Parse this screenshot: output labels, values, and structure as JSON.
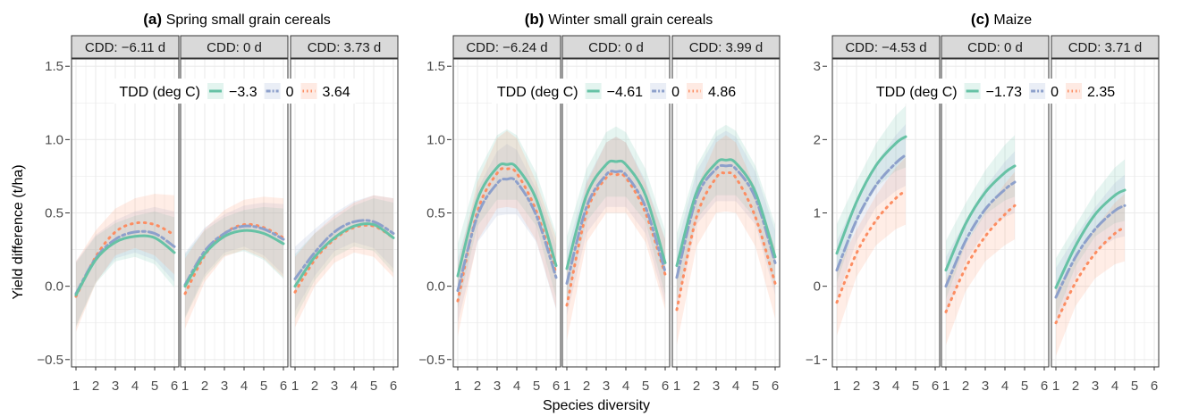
{
  "figure": {
    "xlabel": "Species diversity",
    "ylabel": "Yield difference (t/ha)"
  },
  "legend": {
    "title": "TDD (deg C)"
  },
  "colors": {
    "low": "#66C2A5",
    "mid": "#8DA0CB",
    "high": "#FC8D62",
    "strip_fill": "#d9d9d9",
    "grid": "#ebebeb"
  },
  "chart_data": [
    {
      "type": "line",
      "title_letter": "(a)",
      "title": "Spring small grain cereals",
      "xlabel": "Species diversity",
      "ylabel": "Yield difference (t/ha)",
      "xlim": [
        1,
        6
      ],
      "ylim": [
        -0.55,
        1.55
      ],
      "x_ticks": [
        "1",
        "2",
        "3",
        "4",
        "5",
        "6"
      ],
      "y_ticks": [
        {
          "v": -0.5,
          "label": "−0.5"
        },
        {
          "v": 0.0,
          "label": "0.0"
        },
        {
          "v": 0.5,
          "label": "0.5"
        },
        {
          "v": 1.0,
          "label": "1.0"
        },
        {
          "v": 1.5,
          "label": "1.5"
        }
      ],
      "legend_labels": [
        "−3.3",
        "0",
        "3.64"
      ],
      "grid": true,
      "facets": [
        {
          "label": "CDD: −6.11 d",
          "x": [
            1,
            2,
            3,
            4,
            5,
            6
          ],
          "series": [
            {
              "name": "−3.3",
              "values": [
                -0.06,
                0.18,
                0.3,
                0.34,
                0.33,
                0.23
              ],
              "ci": [
                0.22,
                0.16,
                0.13,
                0.14,
                0.18,
                0.24
              ]
            },
            {
              "name": "0",
              "values": [
                -0.05,
                0.19,
                0.32,
                0.37,
                0.36,
                0.27
              ],
              "ci": [
                0.22,
                0.16,
                0.13,
                0.14,
                0.18,
                0.24
              ]
            },
            {
              "name": "3.64",
              "values": [
                -0.07,
                0.2,
                0.37,
                0.43,
                0.42,
                0.35
              ],
              "ci": [
                0.24,
                0.18,
                0.16,
                0.17,
                0.21,
                0.27
              ]
            }
          ]
        },
        {
          "label": "CDD: 0 d",
          "x": [
            1,
            2,
            3,
            4,
            5,
            6
          ],
          "series": [
            {
              "name": "−3.3",
              "values": [
                0.0,
                0.22,
                0.34,
                0.38,
                0.36,
                0.29
              ],
              "ci": [
                0.22,
                0.16,
                0.13,
                0.14,
                0.18,
                0.24
              ]
            },
            {
              "name": "0",
              "values": [
                0.01,
                0.24,
                0.36,
                0.41,
                0.39,
                0.32
              ],
              "ci": [
                0.22,
                0.16,
                0.13,
                0.14,
                0.18,
                0.24
              ]
            },
            {
              "name": "3.64",
              "values": [
                -0.05,
                0.21,
                0.36,
                0.42,
                0.4,
                0.33
              ],
              "ci": [
                0.24,
                0.18,
                0.16,
                0.17,
                0.21,
                0.27
              ]
            }
          ]
        },
        {
          "label": "CDD: 3.73 d",
          "x": [
            1,
            2,
            3,
            4,
            5,
            6
          ],
          "series": [
            {
              "name": "−3.3",
              "values": [
                0.0,
                0.2,
                0.33,
                0.41,
                0.42,
                0.33
              ],
              "ci": [
                0.22,
                0.16,
                0.13,
                0.14,
                0.18,
                0.24
              ]
            },
            {
              "name": "0",
              "values": [
                0.05,
                0.23,
                0.37,
                0.44,
                0.44,
                0.36
              ],
              "ci": [
                0.22,
                0.16,
                0.13,
                0.14,
                0.18,
                0.24
              ]
            },
            {
              "name": "3.64",
              "values": [
                -0.04,
                0.18,
                0.32,
                0.4,
                0.41,
                0.33
              ],
              "ci": [
                0.24,
                0.18,
                0.16,
                0.17,
                0.21,
                0.27
              ]
            }
          ]
        }
      ]
    },
    {
      "type": "line",
      "title_letter": "(b)",
      "title": "Winter small grain cereals",
      "xlabel": "Species diversity",
      "ylabel": "Yield difference (t/ha)",
      "xlim": [
        1,
        6
      ],
      "ylim": [
        -0.55,
        1.55
      ],
      "x_ticks": [
        "1",
        "2",
        "3",
        "4",
        "5",
        "6"
      ],
      "y_ticks": [
        {
          "v": -0.5,
          "label": "−0.5"
        },
        {
          "v": 0.0,
          "label": "0.0"
        },
        {
          "v": 0.5,
          "label": "0.5"
        },
        {
          "v": 1.0,
          "label": "1.0"
        },
        {
          "v": 1.5,
          "label": "1.5"
        }
      ],
      "legend_labels": [
        "−4.61",
        "0",
        "4.86"
      ],
      "grid": true,
      "facets": [
        {
          "label": "CDD: −6.24 d",
          "x": [
            1,
            2,
            3,
            3.5,
            4,
            5,
            6
          ],
          "series": [
            {
              "name": "−4.61",
              "values": [
                0.07,
                0.59,
                0.81,
                0.83,
                0.81,
                0.59,
                0.14
              ],
              "ci": [
                0.22,
                0.18,
                0.22,
                0.24,
                0.22,
                0.18,
                0.22
              ]
            },
            {
              "name": "0",
              "values": [
                -0.03,
                0.48,
                0.7,
                0.73,
                0.71,
                0.48,
                0.06
              ],
              "ci": [
                0.22,
                0.18,
                0.22,
                0.24,
                0.22,
                0.18,
                0.22
              ]
            },
            {
              "name": "4.86",
              "values": [
                -0.1,
                0.51,
                0.77,
                0.8,
                0.77,
                0.51,
                0.09
              ],
              "ci": [
                0.24,
                0.2,
                0.24,
                0.26,
                0.24,
                0.2,
                0.24
              ]
            }
          ]
        },
        {
          "label": "CDD: 0 d",
          "x": [
            1,
            2,
            3,
            3.5,
            4,
            5,
            6
          ],
          "series": [
            {
              "name": "−4.61",
              "values": [
                0.12,
                0.62,
                0.83,
                0.85,
                0.83,
                0.62,
                0.16
              ],
              "ci": [
                0.22,
                0.18,
                0.22,
                0.24,
                0.22,
                0.18,
                0.22
              ]
            },
            {
              "name": "0",
              "values": [
                0.02,
                0.54,
                0.76,
                0.78,
                0.76,
                0.54,
                0.1
              ],
              "ci": [
                0.22,
                0.18,
                0.22,
                0.24,
                0.22,
                0.18,
                0.22
              ]
            },
            {
              "name": "4.86",
              "values": [
                -0.13,
                0.5,
                0.74,
                0.76,
                0.74,
                0.5,
                0.08
              ],
              "ci": [
                0.24,
                0.2,
                0.24,
                0.26,
                0.24,
                0.2,
                0.24
              ]
            }
          ]
        },
        {
          "label": "CDD: 3.99 d",
          "x": [
            1,
            2,
            3,
            3.5,
            4,
            5,
            6
          ],
          "series": [
            {
              "name": "−4.61",
              "values": [
                0.14,
                0.64,
                0.84,
                0.86,
                0.84,
                0.64,
                0.2
              ],
              "ci": [
                0.22,
                0.18,
                0.22,
                0.24,
                0.22,
                0.18,
                0.22
              ]
            },
            {
              "name": "0",
              "values": [
                0.06,
                0.6,
                0.8,
                0.82,
                0.8,
                0.6,
                0.16
              ],
              "ci": [
                0.22,
                0.18,
                0.22,
                0.24,
                0.22,
                0.18,
                0.22
              ]
            },
            {
              "name": "4.86",
              "values": [
                -0.16,
                0.47,
                0.74,
                0.77,
                0.74,
                0.47,
                0.02
              ],
              "ci": [
                0.24,
                0.2,
                0.24,
                0.26,
                0.24,
                0.2,
                0.24
              ]
            }
          ]
        }
      ]
    },
    {
      "type": "line",
      "title_letter": "(c)",
      "title": "Maize",
      "xlabel": "Species diversity",
      "ylabel": "Yield difference (t/ha)",
      "xlim": [
        1,
        6
      ],
      "ylim": [
        -1.1,
        3.1
      ],
      "x_ticks": [
        "1",
        "2",
        "3",
        "4",
        "5",
        "6"
      ],
      "y_ticks": [
        {
          "v": -1,
          "label": "−1"
        },
        {
          "v": 0,
          "label": "0"
        },
        {
          "v": 1,
          "label": "1"
        },
        {
          "v": 2,
          "label": "2"
        },
        {
          "v": 3,
          "label": "3"
        }
      ],
      "legend_labels": [
        "−1.73",
        "0",
        "2.35"
      ],
      "grid": true,
      "facets": [
        {
          "label": "CDD: −4.53 d",
          "x": [
            1,
            2,
            3,
            4,
            4.5
          ],
          "series": [
            {
              "name": "−1.73",
              "values": [
                0.45,
                1.15,
                1.65,
                1.95,
                2.04
              ],
              "ci": [
                0.4,
                0.28,
                0.3,
                0.38,
                0.42
              ]
            },
            {
              "name": "0",
              "values": [
                0.22,
                0.9,
                1.38,
                1.68,
                1.79
              ],
              "ci": [
                0.4,
                0.28,
                0.3,
                0.38,
                0.42
              ]
            },
            {
              "name": "2.35",
              "values": [
                -0.22,
                0.45,
                0.9,
                1.2,
                1.3
              ],
              "ci": [
                0.45,
                0.32,
                0.34,
                0.42,
                0.46
              ]
            }
          ]
        },
        {
          "label": "CDD: 0 d",
          "x": [
            1,
            2,
            3,
            4,
            4.5
          ],
          "series": [
            {
              "name": "−1.73",
              "values": [
                0.22,
                0.85,
                1.28,
                1.55,
                1.64
              ],
              "ci": [
                0.4,
                0.28,
                0.3,
                0.38,
                0.42
              ]
            },
            {
              "name": "0",
              "values": [
                0.0,
                0.62,
                1.05,
                1.32,
                1.42
              ],
              "ci": [
                0.4,
                0.28,
                0.3,
                0.38,
                0.42
              ]
            },
            {
              "name": "2.35",
              "values": [
                -0.35,
                0.25,
                0.68,
                0.98,
                1.1
              ],
              "ci": [
                0.45,
                0.32,
                0.34,
                0.42,
                0.46
              ]
            }
          ]
        },
        {
          "label": "CDD: 3.71 d",
          "x": [
            1,
            2,
            3,
            4,
            4.5
          ],
          "series": [
            {
              "name": "−1.73",
              "values": [
                -0.02,
                0.55,
                0.98,
                1.24,
                1.31
              ],
              "ci": [
                0.4,
                0.28,
                0.3,
                0.38,
                0.42
              ]
            },
            {
              "name": "0",
              "values": [
                -0.15,
                0.4,
                0.78,
                1.03,
                1.1
              ],
              "ci": [
                0.4,
                0.28,
                0.3,
                0.38,
                0.42
              ]
            },
            {
              "name": "2.35",
              "values": [
                -0.5,
                0.05,
                0.45,
                0.72,
                0.8
              ],
              "ci": [
                0.45,
                0.32,
                0.34,
                0.42,
                0.46
              ]
            }
          ]
        }
      ]
    }
  ]
}
